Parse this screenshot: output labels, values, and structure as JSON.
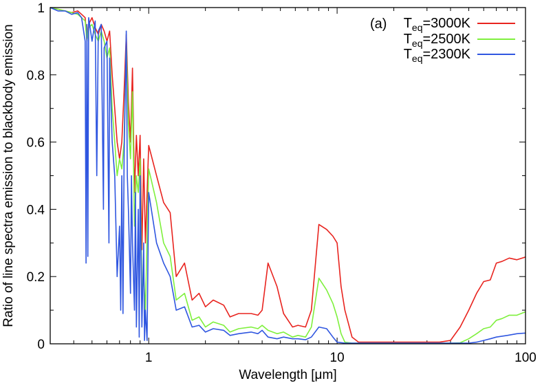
{
  "chart_data": {
    "type": "line",
    "title": "",
    "xlabel": "Wavelength [μm]",
    "ylabel": "Ratio of line spectra emission to blackbody emission",
    "xscale": "log",
    "xlim": [
      0.3,
      100
    ],
    "ylim": [
      0,
      1
    ],
    "x_ticks": [
      1,
      10,
      100
    ],
    "x_tick_labels": [
      "1",
      "10",
      "100"
    ],
    "y_ticks": [
      0,
      0.2,
      0.4,
      0.6,
      0.8,
      1
    ],
    "y_tick_labels": [
      "0",
      "0.2",
      "0.4",
      "0.6",
      "0.8",
      "1"
    ],
    "legend_position": "top-right",
    "annotation": "(a)",
    "series": [
      {
        "name": "Teq=3000K",
        "legend_main": "T",
        "legend_sub": "eq",
        "legend_rest": "=3000K",
        "color": "#e8231e",
        "points": [
          [
            0.3,
            1
          ],
          [
            0.33,
            0.995
          ],
          [
            0.36,
            0.99
          ],
          [
            0.39,
            0.985
          ],
          [
            0.42,
            0.99
          ],
          [
            0.44,
            0.98
          ],
          [
            0.46,
            0.97
          ],
          [
            0.47,
            0.9
          ],
          [
            0.48,
            0.95
          ],
          [
            0.5,
            0.97
          ],
          [
            0.52,
            0.94
          ],
          [
            0.54,
            0.92
          ],
          [
            0.56,
            0.95
          ],
          [
            0.58,
            0.93
          ],
          [
            0.6,
            0.9
          ],
          [
            0.62,
            0.93
          ],
          [
            0.64,
            0.8
          ],
          [
            0.66,
            0.7
          ],
          [
            0.68,
            0.6
          ],
          [
            0.7,
            0.55
          ],
          [
            0.72,
            0.6
          ],
          [
            0.74,
            0.75
          ],
          [
            0.76,
            0.92
          ],
          [
            0.78,
            0.72
          ],
          [
            0.8,
            0.6
          ],
          [
            0.82,
            0.82
          ],
          [
            0.84,
            0.45
          ],
          [
            0.86,
            0.62
          ],
          [
            0.88,
            0.5
          ],
          [
            0.9,
            0.62
          ],
          [
            0.92,
            0.28
          ],
          [
            0.94,
            0.55
          ],
          [
            0.96,
            0.3
          ],
          [
            1.0,
            0.59
          ],
          [
            1.1,
            0.5
          ],
          [
            1.2,
            0.42
          ],
          [
            1.3,
            0.39
          ],
          [
            1.4,
            0.2
          ],
          [
            1.55,
            0.24
          ],
          [
            1.7,
            0.13
          ],
          [
            1.85,
            0.15
          ],
          [
            2.0,
            0.11
          ],
          [
            2.2,
            0.13
          ],
          [
            2.5,
            0.115
          ],
          [
            2.7,
            0.08
          ],
          [
            3.0,
            0.09
          ],
          [
            3.5,
            0.09
          ],
          [
            3.8,
            0.085
          ],
          [
            4.0,
            0.1
          ],
          [
            4.3,
            0.24
          ],
          [
            4.8,
            0.17
          ],
          [
            5.2,
            0.09
          ],
          [
            5.8,
            0.05
          ],
          [
            6.2,
            0.055
          ],
          [
            6.8,
            0.05
          ],
          [
            7.3,
            0.1
          ],
          [
            8.0,
            0.355
          ],
          [
            8.8,
            0.34
          ],
          [
            9.5,
            0.32
          ],
          [
            10.0,
            0.3
          ],
          [
            10.5,
            0.17
          ],
          [
            11.0,
            0.1
          ],
          [
            12.0,
            0.02
          ],
          [
            13.0,
            0.005
          ],
          [
            20,
            0.005
          ],
          [
            30,
            0.005
          ],
          [
            35,
            0.005
          ],
          [
            40,
            0.01
          ],
          [
            45,
            0.05
          ],
          [
            50,
            0.1
          ],
          [
            55,
            0.15
          ],
          [
            60,
            0.185
          ],
          [
            65,
            0.19
          ],
          [
            70,
            0.24
          ],
          [
            75,
            0.245
          ],
          [
            82,
            0.255
          ],
          [
            90,
            0.25
          ],
          [
            100,
            0.258
          ]
        ]
      },
      {
        "name": "Teq=2500K",
        "legend_main": "T",
        "legend_sub": "eq",
        "legend_rest": "=2500K",
        "color": "#7ef03c",
        "points": [
          [
            0.3,
            1
          ],
          [
            0.33,
            0.995
          ],
          [
            0.36,
            0.99
          ],
          [
            0.39,
            0.985
          ],
          [
            0.42,
            0.98
          ],
          [
            0.44,
            0.97
          ],
          [
            0.46,
            0.96
          ],
          [
            0.47,
            0.9
          ],
          [
            0.48,
            0.94
          ],
          [
            0.5,
            0.95
          ],
          [
            0.52,
            0.92
          ],
          [
            0.54,
            0.9
          ],
          [
            0.56,
            0.93
          ],
          [
            0.58,
            0.9
          ],
          [
            0.6,
            0.85
          ],
          [
            0.62,
            0.88
          ],
          [
            0.64,
            0.7
          ],
          [
            0.66,
            0.6
          ],
          [
            0.68,
            0.5
          ],
          [
            0.7,
            0.55
          ],
          [
            0.72,
            0.52
          ],
          [
            0.74,
            0.6
          ],
          [
            0.76,
            0.9
          ],
          [
            0.78,
            0.65
          ],
          [
            0.8,
            0.55
          ],
          [
            0.82,
            0.75
          ],
          [
            0.84,
            0.35
          ],
          [
            0.86,
            0.5
          ],
          [
            0.88,
            0.45
          ],
          [
            0.9,
            0.55
          ],
          [
            0.92,
            0.15
          ],
          [
            0.94,
            0.2
          ],
          [
            0.96,
            0.1
          ],
          [
            1.0,
            0.52
          ],
          [
            1.1,
            0.42
          ],
          [
            1.2,
            0.3
          ],
          [
            1.3,
            0.26
          ],
          [
            1.4,
            0.13
          ],
          [
            1.55,
            0.15
          ],
          [
            1.7,
            0.07
          ],
          [
            1.85,
            0.08
          ],
          [
            2.0,
            0.05
          ],
          [
            2.2,
            0.065
          ],
          [
            2.5,
            0.055
          ],
          [
            2.7,
            0.035
          ],
          [
            3.0,
            0.045
          ],
          [
            3.5,
            0.05
          ],
          [
            3.8,
            0.045
          ],
          [
            4.0,
            0.055
          ],
          [
            4.3,
            0.04
          ],
          [
            4.8,
            0.03
          ],
          [
            5.2,
            0.035
          ],
          [
            5.8,
            0.02
          ],
          [
            6.2,
            0.025
          ],
          [
            6.8,
            0.02
          ],
          [
            7.3,
            0.05
          ],
          [
            8.0,
            0.195
          ],
          [
            8.8,
            0.16
          ],
          [
            9.5,
            0.12
          ],
          [
            10.0,
            0.08
          ],
          [
            10.5,
            0.03
          ],
          [
            11.0,
            0.005
          ],
          [
            12.0,
            0.002
          ],
          [
            20,
            0.002
          ],
          [
            30,
            0.002
          ],
          [
            40,
            0.002
          ],
          [
            45,
            0.003
          ],
          [
            50,
            0.015
          ],
          [
            55,
            0.03
          ],
          [
            60,
            0.045
          ],
          [
            65,
            0.05
          ],
          [
            70,
            0.07
          ],
          [
            75,
            0.075
          ],
          [
            82,
            0.085
          ],
          [
            90,
            0.085
          ],
          [
            100,
            0.095
          ]
        ]
      },
      {
        "name": "Teq=2300K",
        "legend_main": "T",
        "legend_sub": "eq",
        "legend_rest": "=2300K",
        "color": "#2f56e0",
        "points": [
          [
            0.3,
            1
          ],
          [
            0.33,
            0.99
          ],
          [
            0.36,
            0.99
          ],
          [
            0.39,
            0.98
          ],
          [
            0.42,
            0.985
          ],
          [
            0.44,
            0.97
          ],
          [
            0.46,
            0.9
          ],
          [
            0.465,
            0.24
          ],
          [
            0.47,
            0.95
          ],
          [
            0.475,
            0.26
          ],
          [
            0.48,
            0.97
          ],
          [
            0.5,
            0.9
          ],
          [
            0.52,
            0.96
          ],
          [
            0.53,
            0.5
          ],
          [
            0.54,
            0.93
          ],
          [
            0.56,
            0.95
          ],
          [
            0.575,
            0.4
          ],
          [
            0.58,
            0.88
          ],
          [
            0.6,
            0.9
          ],
          [
            0.615,
            0.3
          ],
          [
            0.62,
            0.85
          ],
          [
            0.64,
            0.6
          ],
          [
            0.66,
            0.5
          ],
          [
            0.68,
            0.2
          ],
          [
            0.7,
            0.35
          ],
          [
            0.71,
            0.1
          ],
          [
            0.72,
            0.5
          ],
          [
            0.73,
            0.09
          ],
          [
            0.74,
            0.55
          ],
          [
            0.76,
            0.93
          ],
          [
            0.77,
            0.5
          ],
          [
            0.78,
            0.4
          ],
          [
            0.8,
            0.15
          ],
          [
            0.81,
            0.5
          ],
          [
            0.82,
            0.3
          ],
          [
            0.84,
            0.1
          ],
          [
            0.85,
            0.45
          ],
          [
            0.86,
            0.05
          ],
          [
            0.88,
            0.4
          ],
          [
            0.89,
            0.02
          ],
          [
            0.9,
            0.5
          ],
          [
            0.92,
            0.05
          ],
          [
            0.94,
            0.3
          ],
          [
            0.95,
            0.01
          ],
          [
            0.96,
            0.1
          ],
          [
            0.98,
            0.01
          ],
          [
            1.0,
            0.45
          ],
          [
            1.1,
            0.3
          ],
          [
            1.2,
            0.24
          ],
          [
            1.3,
            0.2
          ],
          [
            1.4,
            0.1
          ],
          [
            1.55,
            0.11
          ],
          [
            1.7,
            0.05
          ],
          [
            1.85,
            0.055
          ],
          [
            2.0,
            0.035
          ],
          [
            2.2,
            0.045
          ],
          [
            2.5,
            0.04
          ],
          [
            2.7,
            0.025
          ],
          [
            3.0,
            0.03
          ],
          [
            3.5,
            0.035
          ],
          [
            3.8,
            0.03
          ],
          [
            4.0,
            0.04
          ],
          [
            4.3,
            0.02
          ],
          [
            4.8,
            0.015
          ],
          [
            5.2,
            0.02
          ],
          [
            5.8,
            0.015
          ],
          [
            6.2,
            0.015
          ],
          [
            6.8,
            0.012
          ],
          [
            7.3,
            0.02
          ],
          [
            8.0,
            0.05
          ],
          [
            8.8,
            0.045
          ],
          [
            9.5,
            0.02
          ],
          [
            10.0,
            0.005
          ],
          [
            11.0,
            0.002
          ],
          [
            20,
            0.002
          ],
          [
            30,
            0.002
          ],
          [
            40,
            0.002
          ],
          [
            50,
            0.002
          ],
          [
            55,
            0.005
          ],
          [
            60,
            0.01
          ],
          [
            65,
            0.015
          ],
          [
            70,
            0.02
          ],
          [
            80,
            0.025
          ],
          [
            90,
            0.03
          ],
          [
            100,
            0.032
          ]
        ]
      }
    ]
  }
}
